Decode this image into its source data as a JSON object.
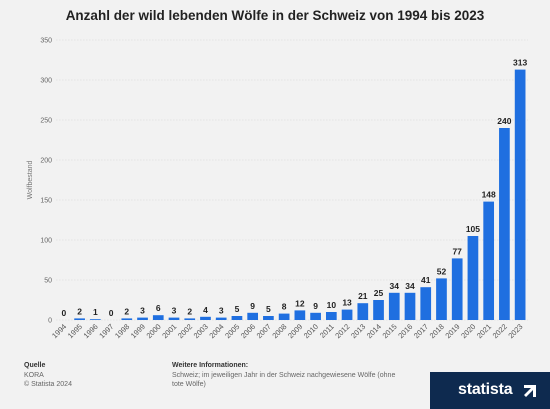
{
  "chart_data": {
    "type": "bar",
    "title": "Anzahl der wild lebenden Wölfe in der Schweiz von 1994 bis 2023",
    "ylabel": "Wolfbestand",
    "xlabel": "",
    "ylim": [
      0,
      350
    ],
    "yticks": [
      0,
      50,
      100,
      150,
      200,
      250,
      300,
      350
    ],
    "grid": true,
    "bar_color": "#1f6fe0",
    "categories": [
      "1994",
      "1995",
      "1996",
      "1997",
      "1998",
      "1999",
      "2000",
      "2001",
      "2002",
      "2003",
      "2004",
      "2005",
      "2006",
      "2007",
      "2008",
      "2009",
      "2010",
      "2011",
      "2012",
      "2013",
      "2014",
      "2015",
      "2016",
      "2017",
      "2018",
      "2019",
      "2020",
      "2021",
      "2022",
      "2023"
    ],
    "values": [
      0,
      2,
      1,
      0,
      2,
      3,
      6,
      3,
      2,
      4,
      3,
      5,
      9,
      5,
      8,
      12,
      9,
      10,
      13,
      21,
      25,
      34,
      34,
      41,
      52,
      77,
      105,
      148,
      240,
      313
    ]
  },
  "footer": {
    "source_heading": "Quelle",
    "source_name": "KORA",
    "copyright": "© Statista 2024",
    "info_heading": "Weitere Informationen:",
    "info_text": "Schweiz; im jeweiligen Jahr in der Schweiz nachgewiesene Wölfe (ohne tote Wölfe)"
  },
  "brand": {
    "name": "statista",
    "icon": "statista-arrow-icon",
    "color": "#0e2a4f"
  }
}
